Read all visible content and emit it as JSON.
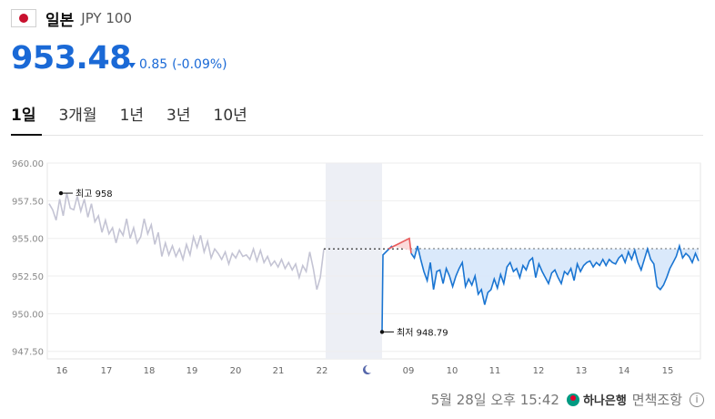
{
  "header": {
    "name": "일본",
    "code": "JPY 100",
    "flag_icon": "japan-flag-icon"
  },
  "quote": {
    "price": "953.48",
    "change": "0.85",
    "change_pct": "(-0.09%)",
    "direction": "down",
    "color": "#1a69d6"
  },
  "tabs": [
    {
      "label": "1일",
      "active": true
    },
    {
      "label": "3개월",
      "active": false
    },
    {
      "label": "1년",
      "active": false
    },
    {
      "label": "3년",
      "active": false
    },
    {
      "label": "10년",
      "active": false
    }
  ],
  "chart_data": {
    "type": "line",
    "y_ticks": [
      "960.00",
      "957.50",
      "955.00",
      "952.50",
      "950.00",
      "947.50"
    ],
    "ylim": [
      947.0,
      960.0
    ],
    "x_ticks": [
      "16",
      "17",
      "18",
      "19",
      "20",
      "21",
      "22",
      "09",
      "10",
      "11",
      "12",
      "13",
      "14",
      "15"
    ],
    "night_icon": "moon-icon",
    "prev_close": 954.3,
    "high": {
      "label": "최고",
      "value": "958"
    },
    "low": {
      "label": "최저",
      "value": "948.79"
    },
    "colors": {
      "history": "#c4c4d4",
      "today": "#1a75d2",
      "up": "#e85a5a",
      "fill": "#d6e7fb",
      "night": "#edeff5"
    },
    "history_series": [
      957.3,
      956.9,
      956.2,
      957.6,
      956.5,
      958.0,
      957.0,
      956.9,
      957.8,
      956.8,
      957.6,
      956.4,
      957.3,
      956.1,
      956.5,
      955.4,
      956.2,
      955.3,
      955.7,
      954.7,
      955.6,
      955.2,
      956.3,
      955.0,
      955.7,
      954.7,
      955.1,
      956.3,
      955.3,
      955.9,
      954.6,
      955.4,
      953.8,
      954.7,
      953.9,
      954.5,
      953.8,
      954.3,
      953.6,
      954.6,
      953.9,
      955.1,
      954.4,
      955.2,
      954.1,
      954.8,
      953.7,
      954.3,
      954.0,
      953.6,
      954.1,
      953.3,
      954.0,
      953.7,
      954.2,
      953.8,
      953.9,
      953.6,
      954.3,
      953.5,
      954.2,
      953.4,
      953.8,
      953.2,
      953.5,
      953.1,
      953.6,
      953.0,
      953.4,
      952.9,
      953.3,
      952.4,
      953.2,
      952.8,
      954.1,
      953.0,
      951.6,
      952.4,
      954.3
    ],
    "today_series": [
      954.0,
      953.7,
      954.5,
      953.6,
      952.8,
      952.2,
      953.4,
      951.6,
      952.8,
      952.9,
      952.0,
      953.0,
      952.5,
      951.8,
      952.5,
      953.0,
      953.4,
      951.8,
      952.3,
      951.9,
      952.5,
      951.3,
      951.6,
      950.6,
      951.4,
      951.6,
      952.3,
      951.7,
      952.6,
      952.0,
      953.1,
      953.4,
      952.8,
      953.0,
      952.4,
      953.2,
      952.9,
      953.5,
      953.7,
      952.4,
      953.3,
      952.8,
      952.4,
      952.0,
      952.7,
      952.9,
      952.4,
      952.0,
      952.8,
      952.6,
      953.0,
      952.2,
      953.3,
      952.8,
      953.2,
      953.4,
      953.5,
      953.1,
      953.4,
      953.2,
      953.6,
      953.2,
      953.6,
      953.4,
      953.3,
      953.7,
      953.9,
      953.4,
      954.1,
      953.6,
      954.2,
      953.4,
      952.9,
      953.6,
      954.3,
      953.6,
      953.3,
      951.8,
      951.6,
      951.9,
      952.4,
      953.0,
      953.4,
      953.8,
      954.5,
      953.7,
      954.0,
      953.8,
      953.4,
      954.0,
      953.5
    ]
  },
  "footer": {
    "timestamp": "5월 28일 오후 15:42",
    "bank": "하나은행",
    "bank_icon": "hana-bank-logo-icon",
    "disclaimer": "면책조항",
    "info_icon": "info-icon"
  }
}
